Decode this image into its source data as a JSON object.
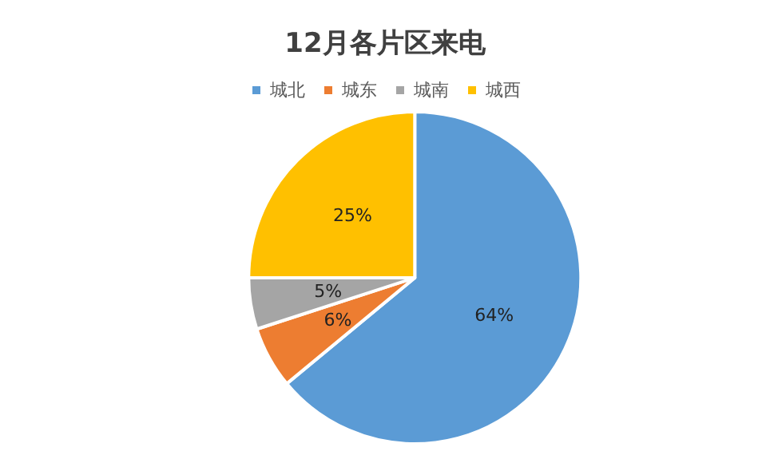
{
  "chart_data": {
    "type": "pie",
    "title": "12月各片区来电",
    "categories": [
      "城北",
      "城东",
      "城南",
      "城西"
    ],
    "values": [
      64,
      6,
      5,
      25
    ],
    "value_labels": [
      "64%",
      "6%",
      "5%",
      "25%"
    ],
    "colors": [
      "#5b9bd5",
      "#ed7d31",
      "#a5a5a5",
      "#ffc000"
    ],
    "legend": "top"
  }
}
